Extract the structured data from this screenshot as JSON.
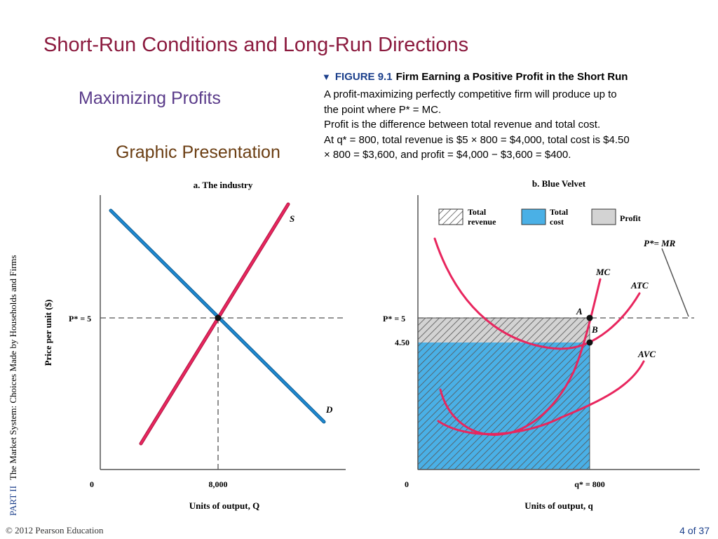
{
  "slide": {
    "title": "Short-Run Conditions and Long-Run Directions",
    "subtitle1": "Maximizing Profits",
    "subtitle2": "Graphic Presentation"
  },
  "figure": {
    "label": "FIGURE 9.1",
    "title": "Firm Earning a Positive Profit in the Short Run",
    "caption_lines": [
      "A profit-maximizing perfectly competitive firm will produce up to",
      "the point where P* = MC.",
      "Profit is the difference between total revenue and total cost.",
      "At q* = 800, total revenue is $5 × 800 = $4,000, total cost is $4.50",
      "× 800 = $3,600, and profit = $4,000 − $3,600 = $400."
    ]
  },
  "panel_a": {
    "title": "a. The industry",
    "ylabel": "Price per unit ($)",
    "xlabel": "Units of output, Q",
    "p_label": "P* = 5",
    "origin": "0",
    "x_tick": "8,000",
    "supply_label": "S",
    "demand_label": "D"
  },
  "panel_b": {
    "title": "b. Blue Velvet",
    "xlabel": "Units of output, q",
    "p_label": "P* = 5",
    "c_label": "4.50",
    "origin": "0",
    "x_tick": "q* = 800",
    "mr_label": "P*= MR",
    "mc_label": "MC",
    "atc_label": "ATC",
    "avc_label": "AVC",
    "point_a": "A",
    "point_b": "B",
    "legend": {
      "tr_line1": "Total",
      "tr_line2": "revenue",
      "tc_line1": "Total",
      "tc_line2": "cost",
      "profit": "Profit"
    }
  },
  "colors": {
    "title": "#8b1a3e",
    "supply_curve": "#e8265e",
    "demand_curve": "#1e88d0",
    "total_cost_fill": "#4ab0e6",
    "profit_fill": "#d3d3d3",
    "figure_label": "#1b3f8b"
  },
  "footer": {
    "sidebar_part": "PART II",
    "sidebar_text": "The Market System: Choices Made by Households and Firms",
    "copyright": "© 2012 Pearson Education",
    "page": "4 of 37"
  }
}
